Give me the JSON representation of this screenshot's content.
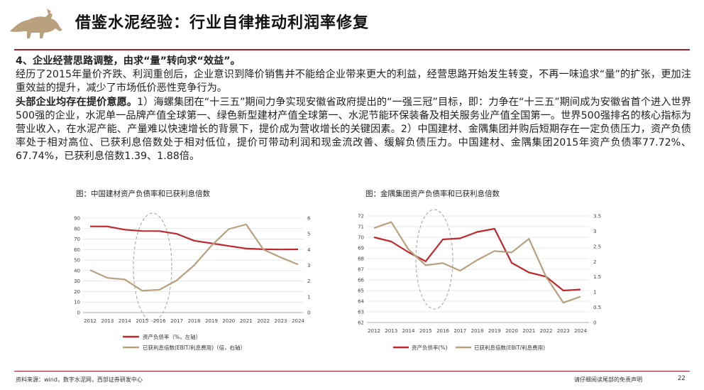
{
  "header": {
    "title": "借鉴水泥经验：行业自律推动利润率修复",
    "accent_color": "#b01e23",
    "logo_icon": "bull-logo-icon"
  },
  "body": {
    "heading": "4、企业经营思路调整，由求“量”转向求“效益”。",
    "para1": "经历了2015年量价齐跌、利润重创后，企业意识到降价销售并不能给企业带来更大的利益，经营思路开始发生转变，不再一味追求“量”的扩张，更加注重效益的提升，减少了市场低价恶性竞争行为。",
    "para2_bold": "头部企业均存在提价意愿。",
    "para2": "1）海螺集团在“十三五”期间力争实现安徽省政府提出的“一强三冠”目标，即：力争在“十三五”期间成为安徽省首个进入世界500强的企业，水泥单一品牌产值全球第一、绿色新型建材产值全球第一、水泥节能环保装备及相关服务业产值全国第一。世界500强排名的核心指标为营业收入，在水泥产能、产量难以快速增长的背景下，提价成为营收增长的关键因素。2）中国建材、金隅集团并购后短期存在一定负债压力，资产负债率处于相对高位、已获利息倍数处于相对低位，提价可带动利润和现金流改善、缓解负债压力。中国建材、金隅集团2015年资产负债率77.72%、67.74%，已获利息倍数1.39、1.88倍。"
  },
  "chart_data": [
    {
      "type": "line",
      "title": "图：中国建材资产负债率和已获利息倍数",
      "x": [
        "2012",
        "2013",
        "2014",
        "2015",
        "2016",
        "2017",
        "2018",
        "2019",
        "2020",
        "2021",
        "2022",
        "2023",
        "2024"
      ],
      "series": [
        {
          "name": "资产负债率（%，左轴）",
          "axis": "left",
          "color": "#c0272d",
          "values": [
            82.1,
            82.0,
            79.0,
            77.7,
            77.6,
            75.0,
            68.5,
            66.0,
            63.5,
            61.0,
            60.3,
            60.1,
            60.2
          ]
        },
        {
          "name": "已获利息倍数(EBIT/利息费用)（倍，右轴）",
          "axis": "right",
          "color": "#b9a17e",
          "values": [
            2.7,
            2.2,
            2.1,
            1.39,
            1.45,
            2.05,
            3.0,
            4.25,
            5.3,
            5.6,
            4.0,
            3.5,
            3.05
          ]
        }
      ],
      "ylim_left": [
        0,
        90
      ],
      "yticks_left": [
        0,
        10,
        20,
        30,
        40,
        50,
        60,
        70,
        80,
        90
      ],
      "ylim_right": [
        0,
        6
      ],
      "yticks_right": [
        0,
        1,
        2,
        3,
        4,
        5,
        6
      ],
      "annotation": "dashed ellipse highlighting 2015-2016",
      "legend_position": "bottom"
    },
    {
      "type": "line",
      "title": "图：金隅集团资产负债率和已获利息倍数",
      "x": [
        "2012",
        "2013",
        "2014",
        "2015",
        "2016",
        "2017",
        "2018",
        "2019",
        "2020",
        "2021",
        "2022",
        "2023",
        "2024"
      ],
      "series": [
        {
          "name": "资产负债率(%)",
          "axis": "left",
          "color": "#c0272d",
          "values": [
            70.0,
            69.6,
            68.6,
            67.74,
            69.8,
            69.9,
            70.5,
            70.8,
            67.6,
            66.7,
            66.3,
            65.0,
            65.1
          ]
        },
        {
          "name": "已获利息倍数(EBIT/利息费用)",
          "axis": "right",
          "color": "#b9a17e",
          "values": [
            3.1,
            3.3,
            2.4,
            1.88,
            1.95,
            1.7,
            2.05,
            2.35,
            2.3,
            2.75,
            1.5,
            0.65,
            0.85
          ]
        }
      ],
      "ylim_left": [
        62,
        72
      ],
      "yticks_left": [
        62,
        63,
        64,
        65,
        66,
        67,
        68,
        69,
        70,
        71,
        72
      ],
      "ylim_right": [
        0,
        3.5
      ],
      "yticks_right": [
        0,
        0.5,
        1,
        1.5,
        2,
        2.5,
        3,
        3.5
      ],
      "annotation": "dashed ellipse highlighting 2015-2016",
      "legend_position": "bottom"
    }
  ],
  "footer": {
    "source": "资料来源：wind，数字水泥网，西部证券研发中心",
    "disclaimer": "请仔细阅读尾部的免责声明",
    "page": "22"
  }
}
